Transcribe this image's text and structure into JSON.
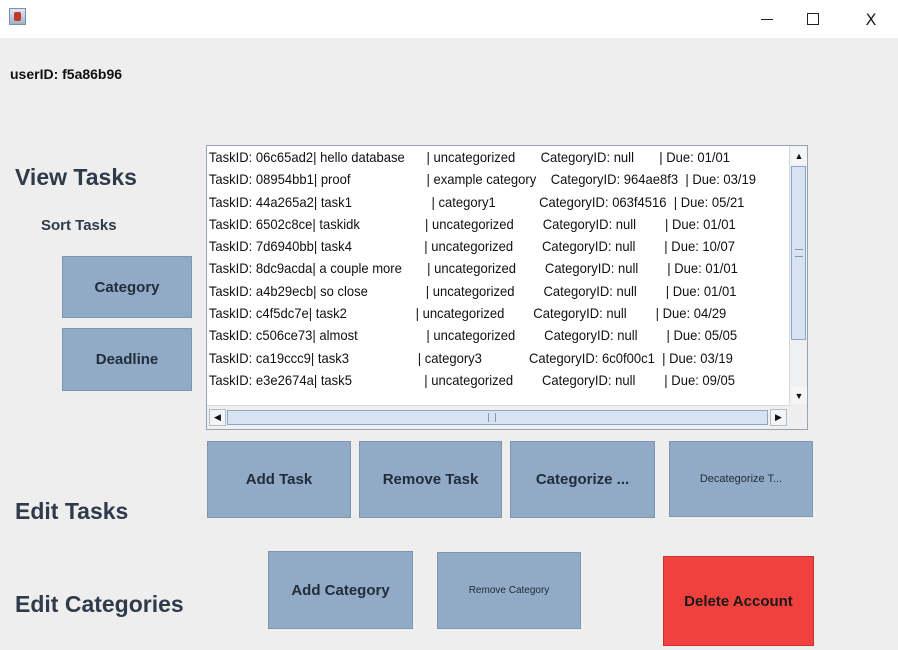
{
  "window": {
    "app_icon": "java-cup-icon",
    "minimize_glyph": "—",
    "maximize_glyph": "☐",
    "close_glyph": "X"
  },
  "user": {
    "id_label": "userID: f5a86b96"
  },
  "headings": {
    "view_tasks": "View Tasks",
    "sort_tasks": "Sort Tasks",
    "edit_tasks": "Edit Tasks",
    "edit_categories": "Edit Categories"
  },
  "sort_buttons": {
    "category": "Category",
    "deadline": "Deadline"
  },
  "task_buttons": {
    "add": "Add Task",
    "remove": "Remove Task",
    "categorize": "Categorize ...",
    "decategorize": "Decategorize T..."
  },
  "category_buttons": {
    "add": "Add Category",
    "remove": "Remove Category"
  },
  "account": {
    "delete": "Delete Account"
  },
  "colors": {
    "button_bg": "#91abc6",
    "delete_bg": "#f0413f",
    "background": "#eeeeee"
  },
  "tasks": [
    "TaskID: 06c65ad2| hello database      | uncategorized       CategoryID: null       | Due: 01/01",
    "TaskID: 08954bb1| proof                     | example category    CategoryID: 964ae8f3  | Due: 03/19",
    "TaskID: 44a265a2| task1                      | category1            CategoryID: 063f4516  | Due: 05/21",
    "TaskID: 6502c8ce| taskidk                  | uncategorized        CategoryID: null        | Due: 01/01",
    "TaskID: 7d6940bb| task4                    | uncategorized        CategoryID: null        | Due: 10/07",
    "TaskID: 8dc9acda| a couple more       | uncategorized        CategoryID: null        | Due: 01/01",
    "TaskID: a4b29ecb| so close                | uncategorized        CategoryID: null        | Due: 01/01",
    "TaskID: c4f5dc7e| task2                   | uncategorized        CategoryID: null        | Due: 04/29",
    "TaskID: c506ce73| almost                   | uncategorized        CategoryID: null        | Due: 05/05",
    "TaskID: ca19ccc9| task3                   | category3             CategoryID: 6c0f00c1  | Due: 03/19",
    "TaskID: e3e2674a| task5                    | uncategorized        CategoryID: null        | Due: 09/05"
  ]
}
